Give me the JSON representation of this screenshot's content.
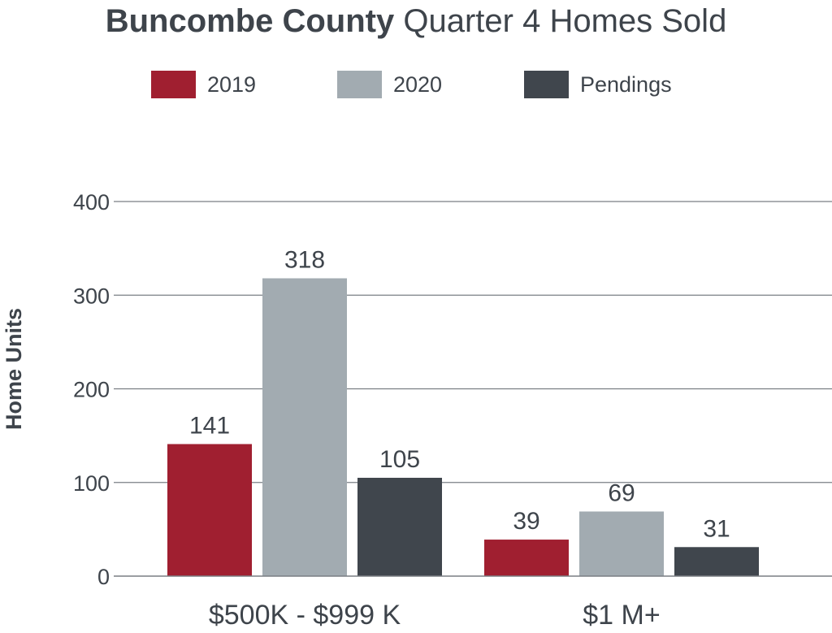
{
  "title": {
    "bold_part": "Buncombe County",
    "regular_part": "Quarter 4 Homes Sold"
  },
  "legend": [
    {
      "label": "2019",
      "color": "#a01f30"
    },
    {
      "label": "2020",
      "color": "#a2abb1"
    },
    {
      "label": "Pendings",
      "color": "#40464d"
    }
  ],
  "chart_data": {
    "type": "bar",
    "title": "Buncombe County Quarter 4 Homes Sold",
    "xlabel": "",
    "ylabel": "Home Units",
    "ylim": [
      0,
      400
    ],
    "yticks": [
      0,
      100,
      200,
      300,
      400
    ],
    "grid": true,
    "legend_position": "top",
    "categories": [
      "$500K - $999 K",
      "$1 M+"
    ],
    "series": [
      {
        "name": "2019",
        "color": "#a01f30",
        "values": [
          141,
          39
        ]
      },
      {
        "name": "2020",
        "color": "#a2abb1",
        "values": [
          318,
          69
        ]
      },
      {
        "name": "Pendings",
        "color": "#40464d",
        "values": [
          105,
          31
        ]
      }
    ]
  }
}
